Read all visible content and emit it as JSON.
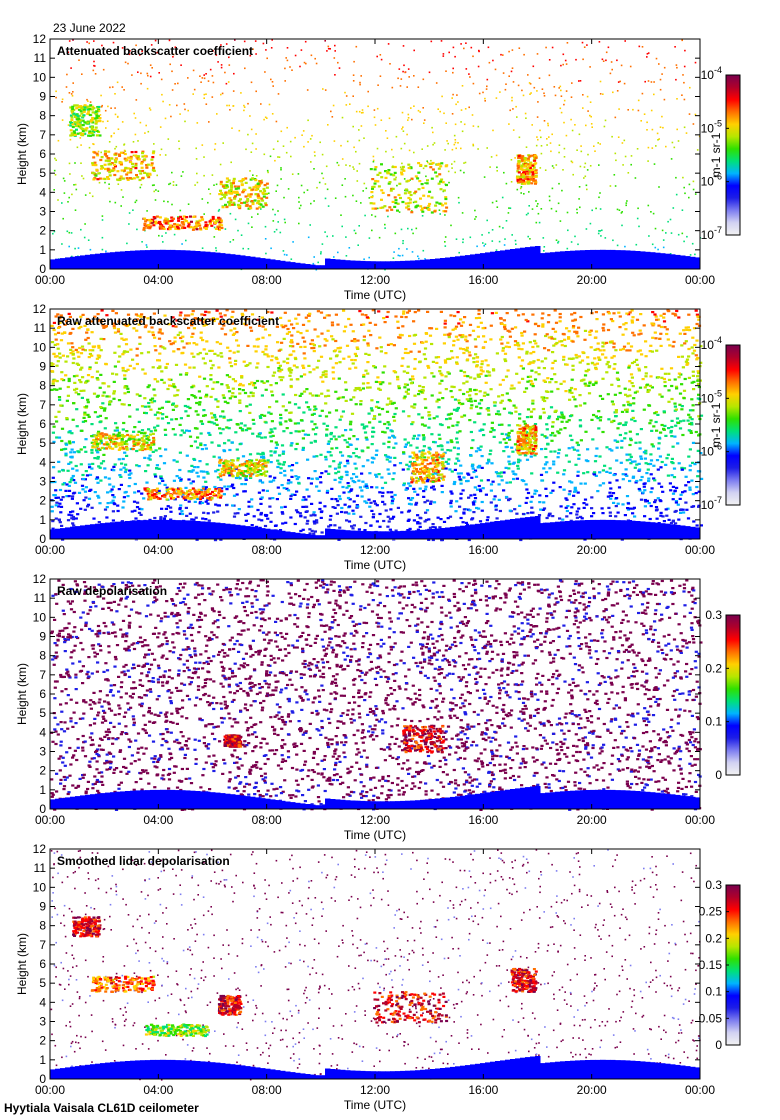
{
  "header": {
    "date": "23 June 2022"
  },
  "footer": {
    "site": "Hyytiala Vaisala CL61D ceilometer"
  },
  "colors": {
    "colormap": [
      "#f2f2f2",
      "#d2d2f2",
      "#7d7df0",
      "#1e1ee6",
      "#0000ff",
      "#00b4ff",
      "#00e07a",
      "#2fe000",
      "#b7e600",
      "#ffd000",
      "#ff7000",
      "#ff0000",
      "#b0002a",
      "#7a004d"
    ]
  },
  "chart_data": [
    {
      "type": "heatmap",
      "title": "Attenuated backscatter coefficient",
      "xlabel": "Time (UTC)",
      "ylabel": "Height (km)",
      "x_ticks": [
        "00:00",
        "04:00",
        "08:00",
        "12:00",
        "16:00",
        "20:00",
        "00:00"
      ],
      "y_ticks": [
        "0",
        "1",
        "2",
        "3",
        "4",
        "5",
        "6",
        "7",
        "8",
        "9",
        "10",
        "11",
        "12"
      ],
      "ylim": [
        0,
        12
      ],
      "xlim_hours": [
        0,
        24
      ],
      "colorbar": {
        "scale": "log",
        "range": [
          1e-07,
          0.0001
        ],
        "ticks": [
          {
            "b": "10",
            "e": "-4"
          },
          {
            "b": "10",
            "e": "-5"
          },
          {
            "b": "10",
            "e": "-6"
          },
          {
            "b": "10",
            "e": "-7"
          }
        ],
        "label": "m-1 sr-1"
      },
      "features": [
        {
          "t0": 0.7,
          "t1": 1.8,
          "h0": 7.0,
          "h1": 8.6,
          "level": 0.72
        },
        {
          "t0": 1.5,
          "t1": 3.8,
          "h0": 4.7,
          "h1": 6.2,
          "level": 0.82
        },
        {
          "t0": 3.4,
          "t1": 6.3,
          "h0": 2.1,
          "h1": 2.8,
          "level": 0.9
        },
        {
          "t0": 6.2,
          "t1": 8.0,
          "h0": 3.2,
          "h1": 4.8,
          "level": 0.8
        },
        {
          "t0": 11.8,
          "t1": 14.6,
          "h0": 3.0,
          "h1": 5.6,
          "level": 0.76
        },
        {
          "t0": 17.2,
          "t1": 17.9,
          "h0": 4.5,
          "h1": 6.0,
          "level": 0.84
        }
      ]
    },
    {
      "type": "heatmap",
      "title": "Raw attenuated backscatter coefficient",
      "xlabel": "Time (UTC)",
      "ylabel": "Height (km)",
      "x_ticks": [
        "00:00",
        "04:00",
        "08:00",
        "12:00",
        "16:00",
        "20:00",
        "00:00"
      ],
      "y_ticks": [
        "0",
        "1",
        "2",
        "3",
        "4",
        "5",
        "6",
        "7",
        "8",
        "9",
        "10",
        "11",
        "12"
      ],
      "ylim": [
        0,
        12
      ],
      "xlim_hours": [
        0,
        24
      ],
      "colorbar": {
        "scale": "log",
        "range": [
          1e-07,
          0.0001
        ],
        "ticks": [
          {
            "b": "10",
            "e": "-4"
          },
          {
            "b": "10",
            "e": "-5"
          },
          {
            "b": "10",
            "e": "-6"
          },
          {
            "b": "10",
            "e": "-7"
          }
        ],
        "label": "m-1 sr-1"
      },
      "features": [
        {
          "t0": 1.5,
          "t1": 3.8,
          "h0": 4.7,
          "h1": 5.6,
          "level": 0.8
        },
        {
          "t0": 3.4,
          "t1": 6.3,
          "h0": 2.1,
          "h1": 2.7,
          "level": 0.88
        },
        {
          "t0": 6.2,
          "t1": 8.0,
          "h0": 3.3,
          "h1": 4.2,
          "level": 0.78
        },
        {
          "t0": 13.3,
          "t1": 14.5,
          "h0": 3.0,
          "h1": 4.6,
          "level": 0.82
        },
        {
          "t0": 17.2,
          "t1": 17.9,
          "h0": 4.5,
          "h1": 6.0,
          "level": 0.84
        }
      ]
    },
    {
      "type": "heatmap",
      "title": "Raw depolarisation",
      "xlabel": "Time (UTC)",
      "ylabel": "Height (km)",
      "x_ticks": [
        "00:00",
        "04:00",
        "08:00",
        "12:00",
        "16:00",
        "20:00",
        "00:00"
      ],
      "y_ticks": [
        "0",
        "1",
        "2",
        "3",
        "4",
        "5",
        "6",
        "7",
        "8",
        "9",
        "10",
        "11",
        "12"
      ],
      "ylim": [
        0,
        12
      ],
      "xlim_hours": [
        0,
        24
      ],
      "colorbar": {
        "scale": "linear",
        "range": [
          0,
          0.3
        ],
        "ticks": [
          "0.3",
          "0.2",
          "0.1",
          "0"
        ]
      },
      "features": [
        {
          "t0": 13.0,
          "t1": 14.5,
          "h0": 3.0,
          "h1": 4.4,
          "level": 1.0
        },
        {
          "t0": 6.4,
          "t1": 7.0,
          "h0": 3.3,
          "h1": 3.9,
          "level": 1.0
        }
      ]
    },
    {
      "type": "heatmap",
      "title": "Smoothed lidar depolarisation",
      "xlabel": "Time (UTC)",
      "ylabel": "Height (km)",
      "x_ticks": [
        "00:00",
        "04:00",
        "08:00",
        "12:00",
        "16:00",
        "20:00",
        "00:00"
      ],
      "y_ticks": [
        "0",
        "1",
        "2",
        "3",
        "4",
        "5",
        "6",
        "7",
        "8",
        "9",
        "10",
        "11",
        "12"
      ],
      "ylim": [
        0,
        12
      ],
      "xlim_hours": [
        0,
        24
      ],
      "colorbar": {
        "scale": "linear",
        "range": [
          0,
          0.3
        ],
        "ticks": [
          "0.3",
          "0.25",
          "0.2",
          "0.15",
          "0.1",
          "0.05",
          "0"
        ]
      },
      "features": [
        {
          "t0": 0.8,
          "t1": 1.8,
          "h0": 7.5,
          "h1": 8.5,
          "level": 1.0
        },
        {
          "t0": 1.5,
          "t1": 3.8,
          "h0": 4.6,
          "h1": 5.4,
          "level": 0.9
        },
        {
          "t0": 3.5,
          "t1": 5.8,
          "h0": 2.3,
          "h1": 2.9,
          "level": 0.7
        },
        {
          "t0": 6.2,
          "t1": 7.0,
          "h0": 3.4,
          "h1": 4.4,
          "level": 1.0
        },
        {
          "t0": 11.9,
          "t1": 14.6,
          "h0": 3.0,
          "h1": 4.6,
          "level": 1.0
        },
        {
          "t0": 17.0,
          "t1": 17.9,
          "h0": 4.6,
          "h1": 5.8,
          "level": 1.0
        }
      ]
    }
  ]
}
